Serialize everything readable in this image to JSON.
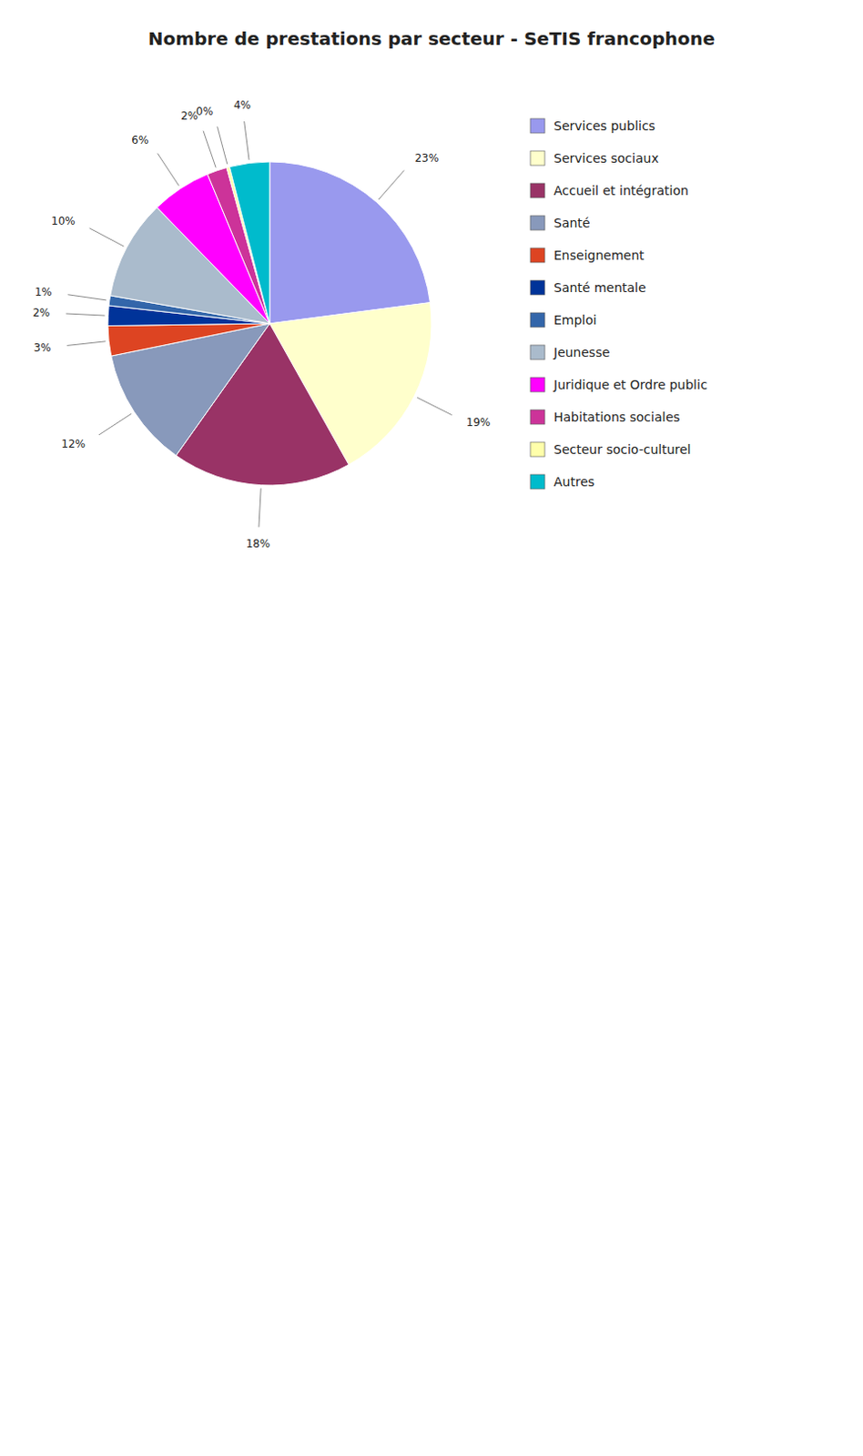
{
  "chart_data": {
    "type": "pie",
    "title": "Nombre de prestations par secteur - SeTIS francophone",
    "categories": [
      "Services publics",
      "Services sociaux",
      "Accueil et intégration",
      "Santé",
      "Enseignement",
      "Santé mentale",
      "Emploi",
      "Jeunesse",
      "Juridique et Ordre public",
      "Habitations sociales",
      "Secteur socio-culturel",
      "Autres"
    ],
    "values": [
      23,
      19,
      18,
      12,
      3,
      2,
      1,
      10,
      6,
      2,
      0.3,
      4
    ],
    "value_labels": [
      "23%",
      "19%",
      "18%",
      "12%",
      "3%",
      "2%",
      "1%",
      "10%",
      "6%",
      "2%",
      "0%",
      "4%"
    ],
    "colors": [
      "#9999EE",
      "#FFFFCC",
      "#993366",
      "#8899BB",
      "#DD4422",
      "#003399",
      "#3366AA",
      "#AABBCC",
      "#FF00FF",
      "#CC3399",
      "#FFFFAA",
      "#00BBCC"
    ],
    "data_labels": true,
    "legend": "right"
  }
}
